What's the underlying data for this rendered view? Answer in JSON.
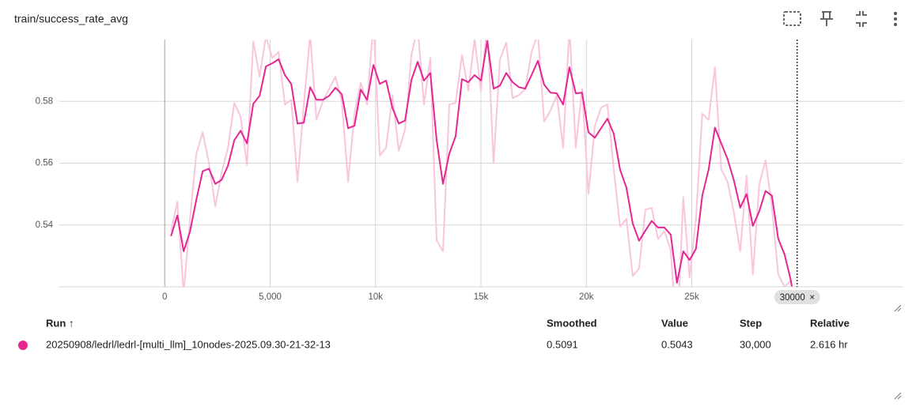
{
  "header": {
    "title": "train/success_rate_avg"
  },
  "chart_data": {
    "type": "line",
    "x": [
      300,
      600,
      900,
      1200,
      1500,
      1800,
      2100,
      2400,
      2700,
      3000,
      3300,
      3600,
      3900,
      4200,
      4500,
      4800,
      5100,
      5400,
      5700,
      6000,
      6300,
      6600,
      6900,
      7200,
      7500,
      7800,
      8100,
      8400,
      8700,
      9000,
      9300,
      9600,
      9900,
      10200,
      10500,
      10800,
      11100,
      11400,
      11700,
      12000,
      12300,
      12600,
      12900,
      13200,
      13500,
      13800,
      14100,
      14400,
      14700,
      15000,
      15300,
      15600,
      15900,
      16200,
      16500,
      16800,
      17100,
      17400,
      17700,
      18000,
      18300,
      18600,
      18900,
      19200,
      19500,
      19800,
      20100,
      20400,
      20700,
      21000,
      21300,
      21600,
      21900,
      22200,
      22500,
      22800,
      23100,
      23400,
      23700,
      24000,
      24300,
      24600,
      24900,
      25200,
      25500,
      25800,
      26100,
      26400,
      26700,
      27000,
      27300,
      27600,
      27900,
      28200,
      28500,
      28800,
      29100,
      29400,
      29700,
      30000
    ],
    "series": [
      {
        "color": "#f9c4dd",
        "values": [
          0.538,
          0.5475,
          0.518,
          0.542,
          0.563,
          0.57,
          0.56,
          0.546,
          0.557,
          0.565,
          0.5795,
          0.575,
          0.5595,
          0.5995,
          0.588,
          0.601,
          0.594,
          0.596,
          0.579,
          0.5805,
          0.554,
          0.579,
          0.6015,
          0.574,
          0.58,
          0.584,
          0.588,
          0.58,
          0.554,
          0.576,
          0.586,
          0.579,
          0.606,
          0.5625,
          0.565,
          0.582,
          0.564,
          0.571,
          0.595,
          0.604,
          0.579,
          0.594,
          0.535,
          0.5315,
          0.579,
          0.5795,
          0.595,
          0.5835,
          0.6,
          0.5835,
          0.605,
          0.56,
          0.5935,
          0.599,
          0.581,
          0.582,
          0.584,
          0.596,
          0.602,
          0.5735,
          0.577,
          0.582,
          0.565,
          0.604,
          0.565,
          0.584,
          0.55,
          0.572,
          0.578,
          0.579,
          0.558,
          0.5395,
          0.542,
          0.5235,
          0.526,
          0.545,
          0.5455,
          0.5355,
          0.538,
          0.532,
          0.502,
          0.549,
          0.523,
          0.542,
          0.576,
          0.574,
          0.591,
          0.558,
          0.554,
          0.544,
          0.5315,
          0.556,
          0.524,
          0.553,
          0.561,
          0.546,
          0.524,
          0.52,
          0.522,
          0.5043
        ]
      },
      {
        "color": "#e52592",
        "values": [
          0.5364,
          0.5431,
          0.5315,
          0.5379,
          0.5482,
          0.5574,
          0.5582,
          0.5533,
          0.5546,
          0.5592,
          0.5674,
          0.5705,
          0.5664,
          0.5792,
          0.5818,
          0.5913,
          0.5923,
          0.5936,
          0.5885,
          0.5856,
          0.5728,
          0.5731,
          0.5846,
          0.5805,
          0.5805,
          0.5818,
          0.5844,
          0.5823,
          0.5713,
          0.5721,
          0.5838,
          0.5805,
          0.5918,
          0.5856,
          0.5867,
          0.5779,
          0.5728,
          0.5738,
          0.5869,
          0.5928,
          0.5867,
          0.5892,
          0.5674,
          0.5533,
          0.5631,
          0.5687,
          0.5872,
          0.5862,
          0.5885,
          0.5867,
          0.5995,
          0.5841,
          0.5851,
          0.5892,
          0.5862,
          0.5846,
          0.5841,
          0.5885,
          0.5931,
          0.5854,
          0.5828,
          0.5826,
          0.579,
          0.591,
          0.5826,
          0.5828,
          0.57,
          0.5682,
          0.5713,
          0.5744,
          0.5695,
          0.5579,
          0.5521,
          0.5405,
          0.5349,
          0.5382,
          0.5413,
          0.5392,
          0.5392,
          0.5369,
          0.5213,
          0.5315,
          0.5287,
          0.5323,
          0.5495,
          0.5579,
          0.5715,
          0.5664,
          0.5613,
          0.5544,
          0.5456,
          0.55,
          0.5397,
          0.5444,
          0.551,
          0.5495,
          0.5356,
          0.5305,
          0.5221,
          0.5091
        ]
      }
    ],
    "xlim": [
      -5000,
      35000
    ],
    "xticks": [
      0,
      {
        "value": 5000,
        "label": "5,000"
      },
      {
        "value": 10000,
        "label": "10k"
      },
      {
        "value": 15000,
        "label": "15k"
      },
      {
        "value": 20000,
        "label": "20k"
      },
      {
        "value": 25000,
        "label": "25k"
      }
    ],
    "ylim": [
      0.52,
      0.6
    ],
    "yticks": [
      0.54,
      0.56,
      0.58
    ],
    "grid": true,
    "hover_step": 30000,
    "hover_close": "×"
  },
  "table": {
    "headers": [
      "Run ↑",
      "Smoothed",
      "Value",
      "Step",
      "Relative"
    ],
    "rows": [
      [
        "20250908/ledrl/ledrl-[multi_llm]_10nodes-2025.09.30-21-32-13",
        "0.5091",
        "0.5043",
        "30,000",
        "2.616 hr"
      ]
    ]
  }
}
